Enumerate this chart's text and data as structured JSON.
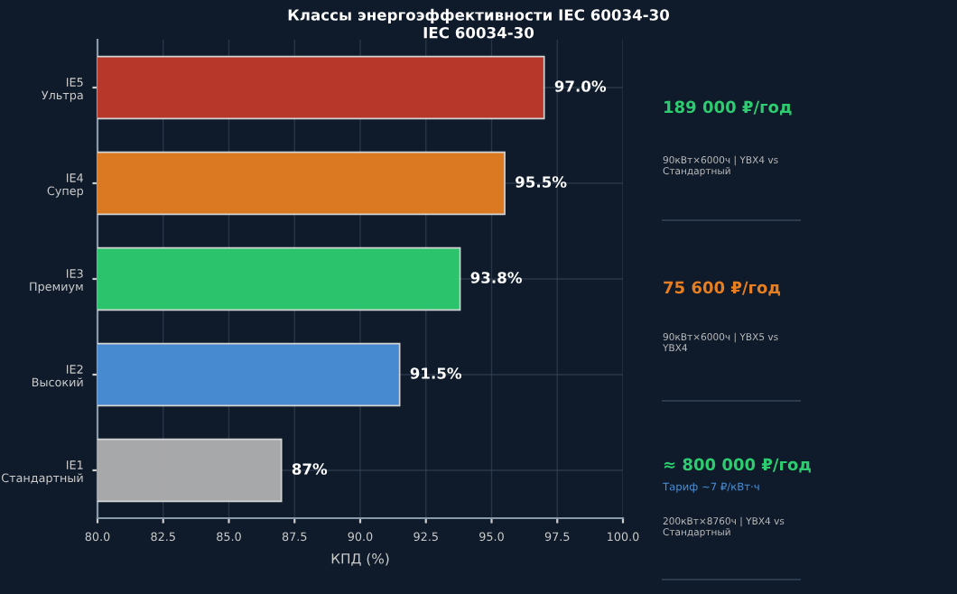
{
  "chart_data": {
    "type": "bar",
    "orientation": "horizontal",
    "title": "Классы энергоэффективности IEC 60034-30",
    "subtitle": "IEC 60034-30",
    "categories": [
      "IE5\nУльтра",
      "IE4\nСупер",
      "IE3\nПремиум",
      "IE2\nВысокий",
      "IE1\nСтандартный"
    ],
    "values": [
      97.0,
      95.5,
      93.8,
      91.5,
      87
    ],
    "colors": [
      "#c0392b",
      "#e67e22",
      "#2ecc71",
      "#4a90d9",
      "#b0b0b0"
    ],
    "value_labels": [
      "97.0%",
      "95.5%",
      "93.8%",
      "91.5%",
      "87%"
    ],
    "xlabel": "КПД (%)",
    "xlim": [
      80.0,
      100.0
    ],
    "xticks": [
      {
        "value": 80,
        "label": "80.0"
      },
      {
        "value": 82.5,
        "label": "82.5"
      },
      {
        "value": 85,
        "label": "85.0"
      },
      {
        "value": 87.5,
        "label": "87.5"
      },
      {
        "value": 90,
        "label": "90.0"
      },
      {
        "value": 92.5,
        "label": "92.5"
      },
      {
        "value": 95,
        "label": "95.0"
      },
      {
        "value": 97.5,
        "label": "97.5"
      },
      {
        "value": 100,
        "label": "100.0"
      }
    ],
    "grid": true,
    "annotations": [
      "189 000 ₽/год",
      "90кВт×6000ч | YBX4 vs\nСтандартный",
      "75 600 ₽/год",
      "90кВт×6000ч | YBX5 vs\nYBX4",
      "≈ 800 000 ₽/год",
      "Тариф ~7 ₽/кВт·ч",
      "200кВт×8760ч | YBX4 vs\nСтандартный"
    ]
  }
}
